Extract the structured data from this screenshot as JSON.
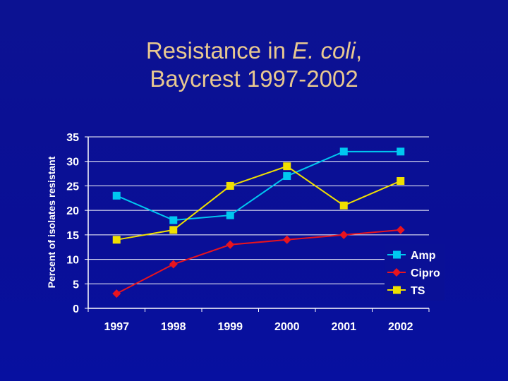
{
  "title": {
    "line1_prefix": "Resistance in ",
    "line1_italic": "E. coli",
    "line1_suffix": ",",
    "line2": "Baycrest 1997-2002"
  },
  "colors": {
    "background": "#0a1096",
    "title": "#e8c890",
    "axis": "#ffffff",
    "Amp": "#00c8f0",
    "Cipro": "#e8141e",
    "TS": "#f0e000"
  },
  "chart_data": {
    "type": "line",
    "title": "Resistance in E. coli, Baycrest 1997-2002",
    "xlabel": "",
    "ylabel": "Percent of isolates resistant",
    "categories": [
      "1997",
      "1998",
      "1999",
      "2000",
      "2001",
      "2002"
    ],
    "ylim": [
      0,
      35
    ],
    "yticks": [
      "0",
      "5",
      "10",
      "15",
      "20",
      "25",
      "30",
      "35"
    ],
    "grid": true,
    "legend_position": "right",
    "series": [
      {
        "name": "Amp",
        "values": [
          23,
          18,
          19,
          27,
          32,
          32
        ],
        "marker": "square"
      },
      {
        "name": "Cipro",
        "values": [
          3,
          9,
          13,
          14,
          15,
          16
        ],
        "marker": "diamond"
      },
      {
        "name": "TS",
        "values": [
          14,
          16,
          25,
          29,
          21,
          26
        ],
        "marker": "square"
      }
    ]
  }
}
